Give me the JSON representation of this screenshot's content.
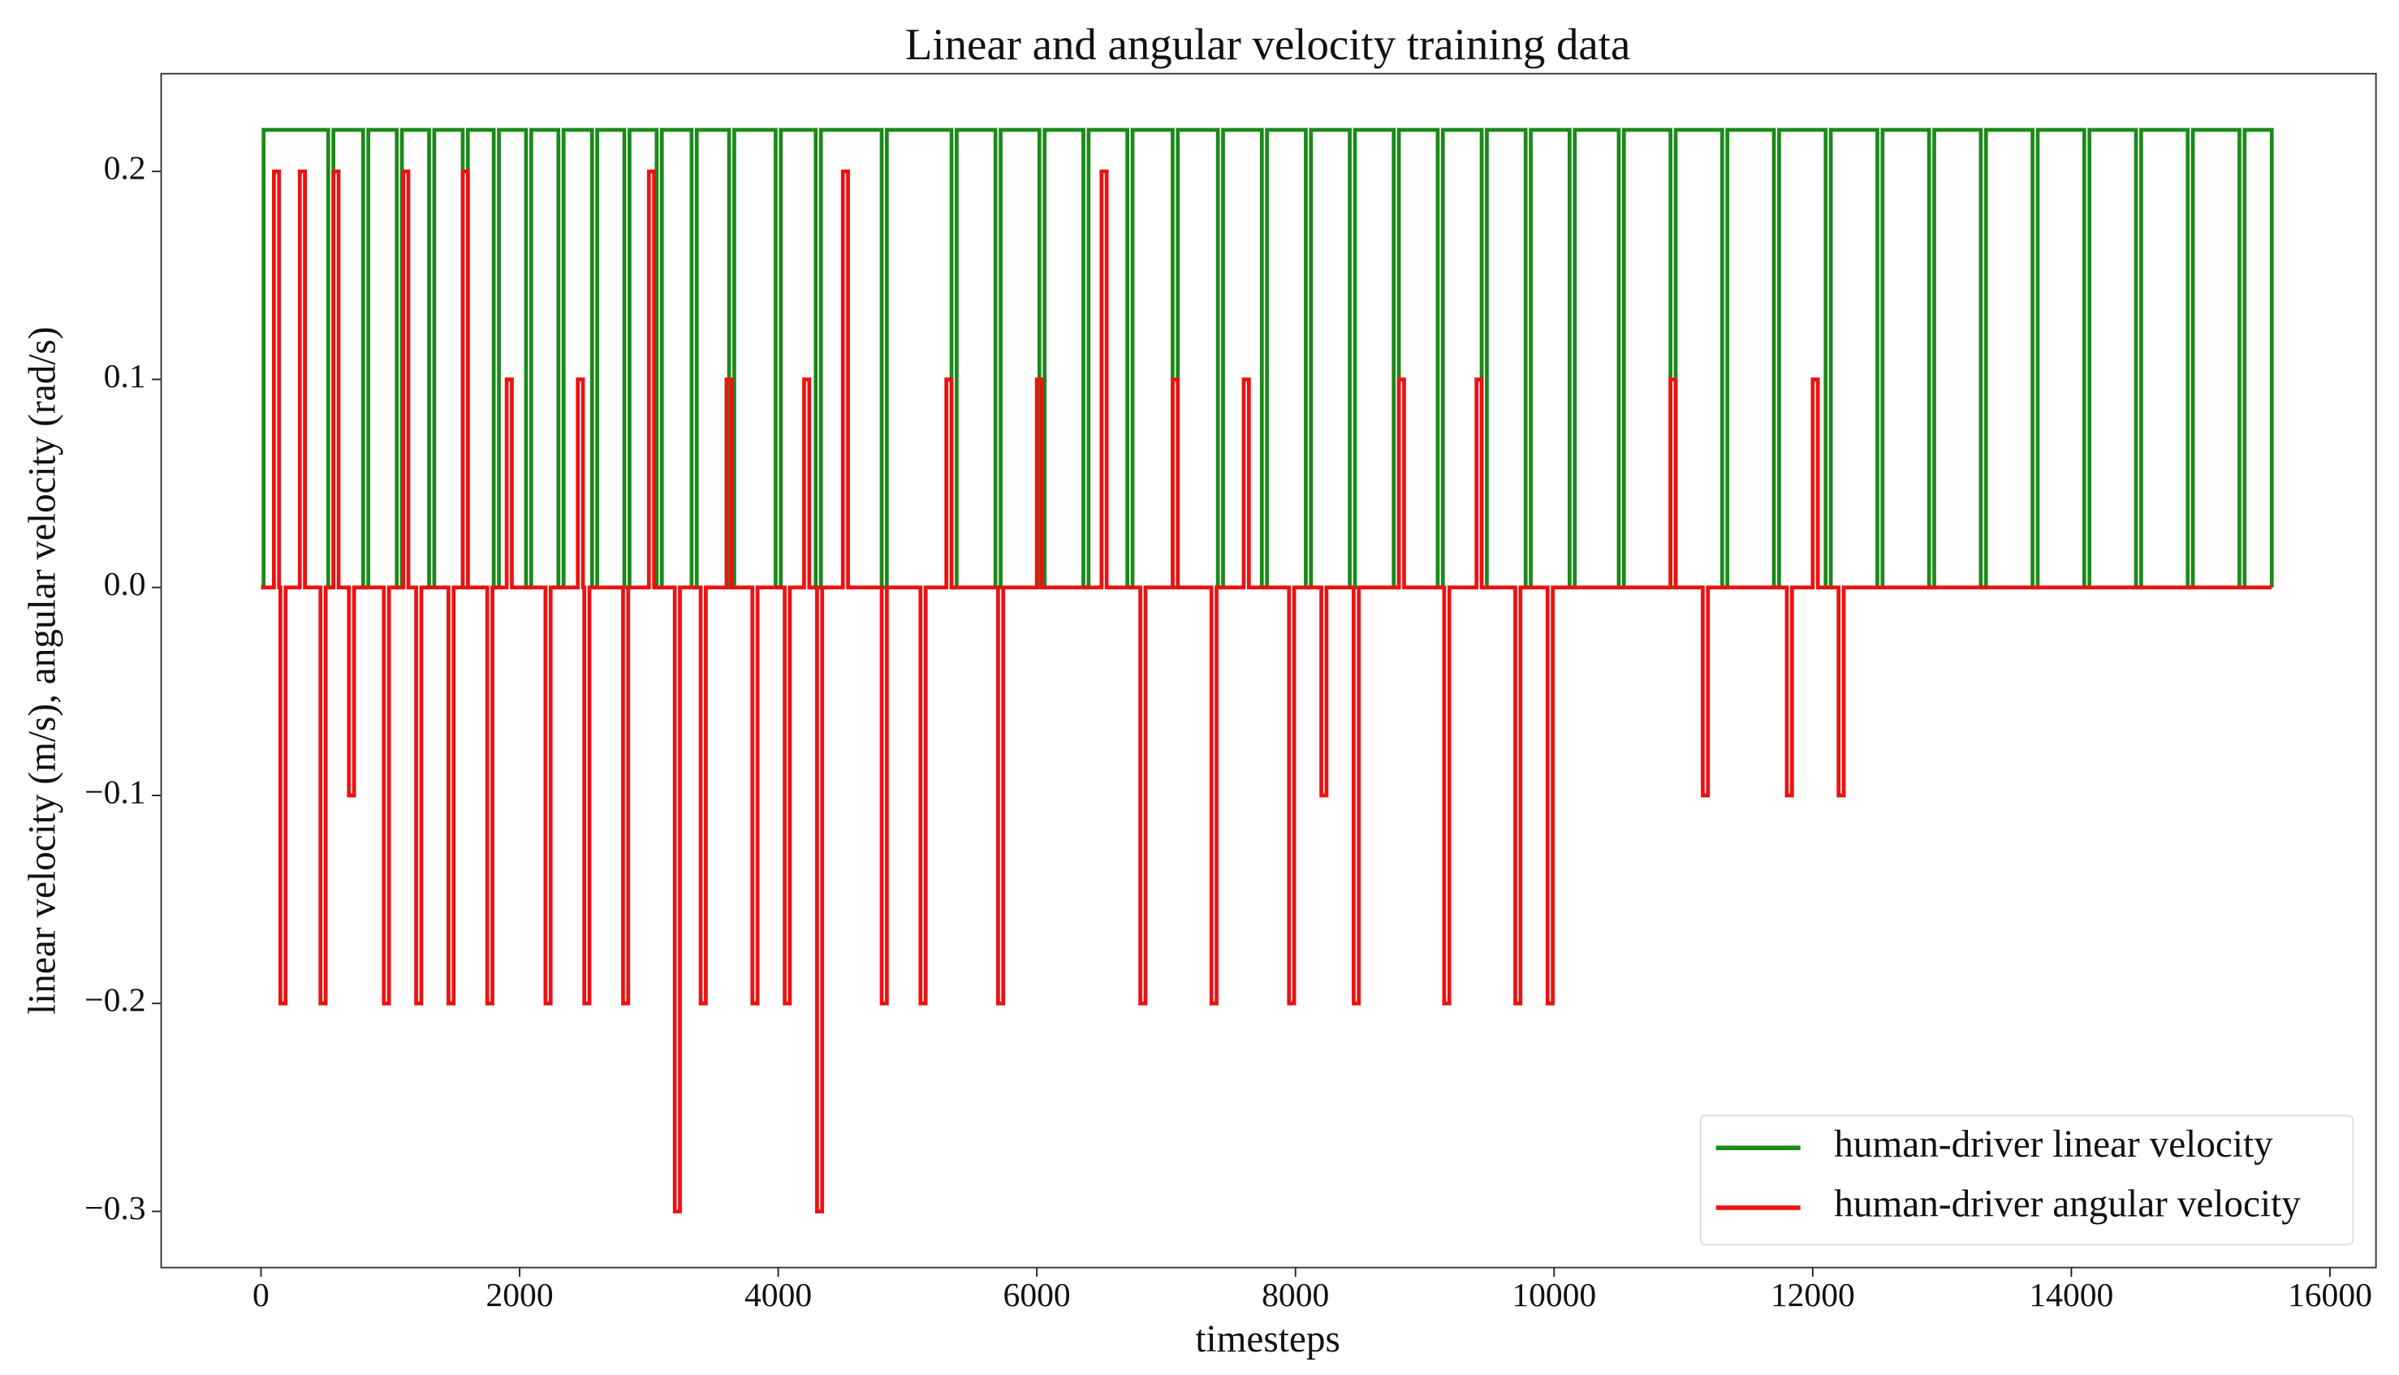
{
  "chart_data": {
    "type": "line",
    "drawstyle": "steps-post",
    "title": "Linear and angular velocity training data",
    "xlabel": "timesteps",
    "ylabel": "linear velocity (m/s), angular velocity (rad/s)",
    "xlim": [
      -772,
      16356
    ],
    "ylim": [
      -0.327,
      0.247
    ],
    "xticks": [
      0,
      2000,
      4000,
      6000,
      8000,
      10000,
      12000,
      14000,
      16000
    ],
    "yticks": [
      {
        "value": -0.3,
        "label": "−0.3"
      },
      {
        "value": -0.2,
        "label": "−0.2"
      },
      {
        "value": -0.1,
        "label": "−0.1"
      },
      {
        "value": 0,
        "label": "0.0"
      },
      0.1,
      0.2
    ],
    "legend": "lower right",
    "series": [
      {
        "name": "human-driver linear velocity",
        "color": "#1a8a1a",
        "x": [
          0,
          20,
          520,
          560,
          790,
          830,
          1050,
          1090,
          1300,
          1340,
          1560,
          1600,
          1800,
          1840,
          2050,
          2090,
          2300,
          2340,
          2560,
          2600,
          2810,
          2850,
          3060,
          3100,
          3330,
          3370,
          3620,
          3660,
          3980,
          4020,
          4290,
          4330,
          4800,
          4840,
          5340,
          5380,
          5680,
          5720,
          6020,
          6060,
          6360,
          6400,
          6700,
          6740,
          7050,
          7090,
          7400,
          7440,
          7740,
          7780,
          8080,
          8120,
          8420,
          8460,
          8760,
          8800,
          9100,
          9140,
          9440,
          9480,
          9780,
          9820,
          10120,
          10160,
          10500,
          10540,
          10900,
          10940,
          11300,
          11340,
          11700,
          11740,
          12100,
          12140,
          12500,
          12540,
          12900,
          12940,
          13300,
          13340,
          13700,
          13740,
          14100,
          14140,
          14500,
          14540,
          14900,
          14940,
          15300,
          15340,
          15550
        ],
        "values": [
          0,
          0.22,
          0,
          0.22,
          0,
          0.22,
          0,
          0.22,
          0,
          0.22,
          0,
          0.22,
          0,
          0.22,
          0,
          0.22,
          0,
          0.22,
          0,
          0.22,
          0,
          0.22,
          0,
          0.22,
          0,
          0.22,
          0,
          0.22,
          0,
          0.22,
          0,
          0.22,
          0,
          0.22,
          0,
          0.22,
          0,
          0.22,
          0,
          0.22,
          0,
          0.22,
          0,
          0.22,
          0,
          0.22,
          0,
          0.22,
          0,
          0.22,
          0,
          0.22,
          0,
          0.22,
          0,
          0.22,
          0,
          0.22,
          0,
          0.22,
          0,
          0.22,
          0,
          0.22,
          0,
          0.22,
          0,
          0.22,
          0,
          0.22,
          0,
          0.22,
          0,
          0.22,
          0,
          0.22,
          0,
          0.22,
          0,
          0.22,
          0,
          0.22,
          0,
          0.22,
          0,
          0.22,
          0,
          0.22,
          0,
          0.22,
          0
        ]
      },
      {
        "name": "human-driver angular velocity",
        "color": "#ee1111",
        "x": [
          0,
          100,
          140,
          150,
          190,
          300,
          340,
          460,
          500,
          560,
          600,
          680,
          720,
          950,
          990,
          1100,
          1140,
          1200,
          1240,
          1450,
          1490,
          1560,
          1600,
          1750,
          1790,
          1900,
          1940,
          2200,
          2240,
          2450,
          2490,
          2500,
          2540,
          2800,
          2840,
          3000,
          3040,
          3200,
          3240,
          3400,
          3440,
          3600,
          3640,
          3800,
          3840,
          4050,
          4090,
          4200,
          4240,
          4300,
          4340,
          4500,
          4540,
          4800,
          4840,
          5100,
          5140,
          5300,
          5340,
          5700,
          5740,
          6000,
          6040,
          6500,
          6540,
          6800,
          6840,
          7050,
          7090,
          7350,
          7390,
          7600,
          7640,
          7950,
          7990,
          8200,
          8240,
          8450,
          8490,
          8800,
          8840,
          9150,
          9190,
          9400,
          9440,
          9700,
          9740,
          9950,
          9990,
          10900,
          10940,
          11150,
          11190,
          11800,
          11840,
          12000,
          12040,
          12200,
          12240,
          15550
        ],
        "values": [
          0,
          0.2,
          0,
          -0.2,
          0,
          0.2,
          0,
          -0.2,
          0,
          0.2,
          0,
          -0.1,
          0,
          -0.2,
          0,
          0.2,
          0,
          -0.2,
          0,
          -0.2,
          0,
          0.2,
          0,
          -0.2,
          0,
          0.1,
          0,
          -0.2,
          0,
          0.1,
          0,
          -0.2,
          0,
          -0.2,
          0,
          0.2,
          0,
          -0.3,
          0,
          -0.2,
          0,
          0.1,
          0,
          -0.2,
          0,
          -0.2,
          0,
          0.1,
          0,
          -0.3,
          0,
          0.2,
          0,
          -0.2,
          0,
          -0.2,
          0,
          0.1,
          0,
          -0.2,
          0,
          0.1,
          0,
          0.2,
          0,
          -0.2,
          0,
          0.1,
          0,
          -0.2,
          0,
          0.1,
          0,
          -0.2,
          0,
          -0.1,
          0,
          -0.2,
          0,
          0.1,
          0,
          -0.2,
          0,
          0.1,
          0,
          -0.2,
          0,
          -0.2,
          0,
          0.1,
          0,
          -0.1,
          0,
          -0.1,
          0,
          0.1,
          0,
          -0.1,
          0,
          0
        ]
      }
    ]
  }
}
